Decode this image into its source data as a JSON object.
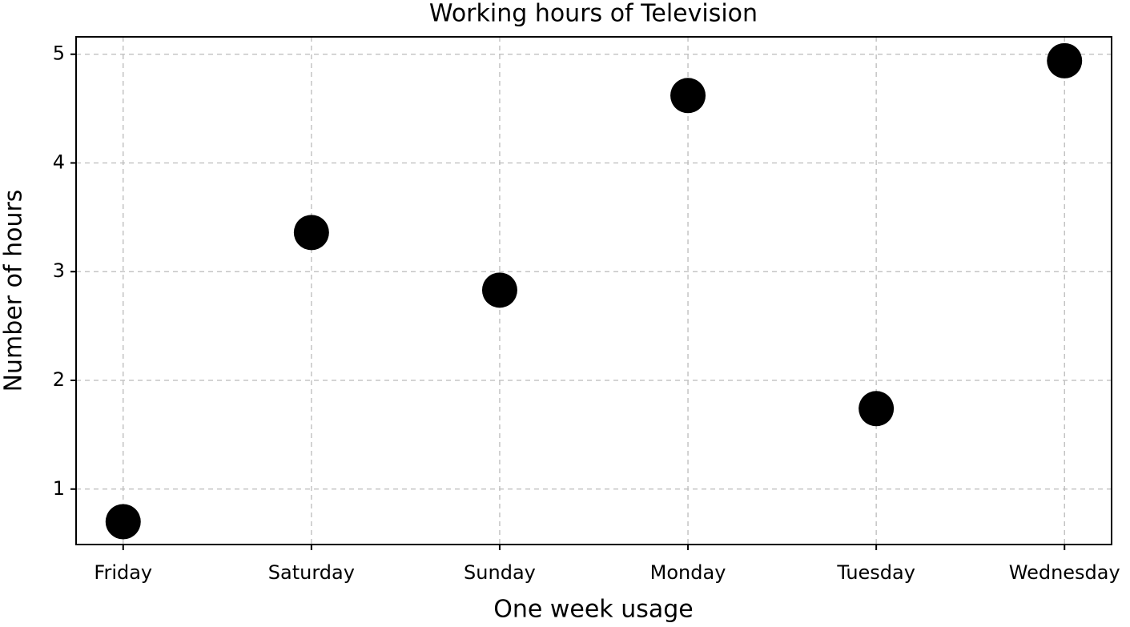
{
  "chart_data": {
    "type": "scatter",
    "title": "Working hours of Television",
    "x_label": "One week usage",
    "y_label": "Number of hours",
    "categories": [
      "Friday",
      "Saturday",
      "Sunday",
      "Monday",
      "Tuesday",
      "Wednesday"
    ],
    "values": [
      0.7,
      3.36,
      2.83,
      4.62,
      1.74,
      4.94
    ],
    "color": "#000000",
    "ylim": [
      0.49,
      5.16
    ],
    "yticks": [
      1,
      2,
      3,
      4,
      5
    ],
    "grid": true
  }
}
